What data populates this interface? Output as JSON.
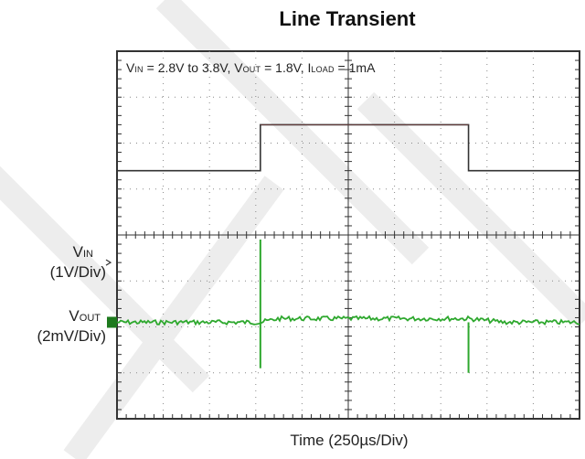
{
  "chart_data": {
    "type": "line",
    "title": "Line Transient",
    "annotation": {
      "vin_main": "V",
      "vin_sub": "IN",
      "vin_text": " = 2.8V to 3.8V, ",
      "vout_main": "V",
      "vout_sub": "OUT",
      "vout_text": " = 1.8V, ",
      "iload_main": "I",
      "iload_sub": "LOAD",
      "iload_text": " = 1mA"
    },
    "xlabel": "Time (250µs/Div)",
    "x_divisions": 10,
    "y_divisions": 8,
    "x_unit_per_div": "250µs",
    "channels": [
      {
        "name_main": "V",
        "name_sub": "IN",
        "scale": "(1V/Div)",
        "color": "#333333",
        "levels_v": [
          2.8,
          3.8,
          2.8
        ],
        "step_times_div": [
          3.1,
          7.6
        ]
      },
      {
        "name_main": "V",
        "name_sub": "OUT",
        "scale": "(2mV/Div)",
        "color": "#2ea82e",
        "nominal_v": 1.8,
        "spikes": [
          {
            "time_div": 3.1,
            "up_div": 1.8,
            "down_div": 1.0
          },
          {
            "time_div": 7.6,
            "up_div": 0.0,
            "down_div": 1.1
          }
        ]
      }
    ],
    "grid": true,
    "colors": {
      "grid": "#888888",
      "frame": "#333333",
      "vout": "#2ea82e",
      "marker": "#1e7a1e"
    }
  }
}
